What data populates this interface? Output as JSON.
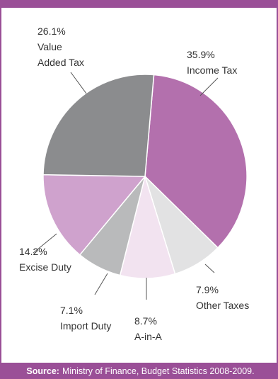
{
  "source": {
    "label": "Source:",
    "text": "Ministry of Finance, Budget Statistics 2008-2009."
  },
  "chart_data": {
    "type": "pie",
    "title": "",
    "slices": [
      {
        "label": "Income Tax",
        "value": 35.9,
        "value_label": "35.9%",
        "color": "#b370ad"
      },
      {
        "label": "Other Taxes",
        "value": 7.9,
        "value_label": "7.9%",
        "color": "#e2e2e3"
      },
      {
        "label": "A-in-A",
        "value": 8.7,
        "value_label": "8.7%",
        "color": "#f2e3f0"
      },
      {
        "label": "Import Duty",
        "value": 7.1,
        "value_label": "7.1%",
        "color": "#b9babb"
      },
      {
        "label": "Excise Duty",
        "value": 14.2,
        "value_label": "14.2%",
        "color": "#cfa2cd"
      },
      {
        "label": "Value Added Tax",
        "label_lines": [
          "Value",
          "Added Tax"
        ],
        "value": 26.1,
        "value_label": "26.1%",
        "color": "#8b8c8e"
      }
    ]
  }
}
